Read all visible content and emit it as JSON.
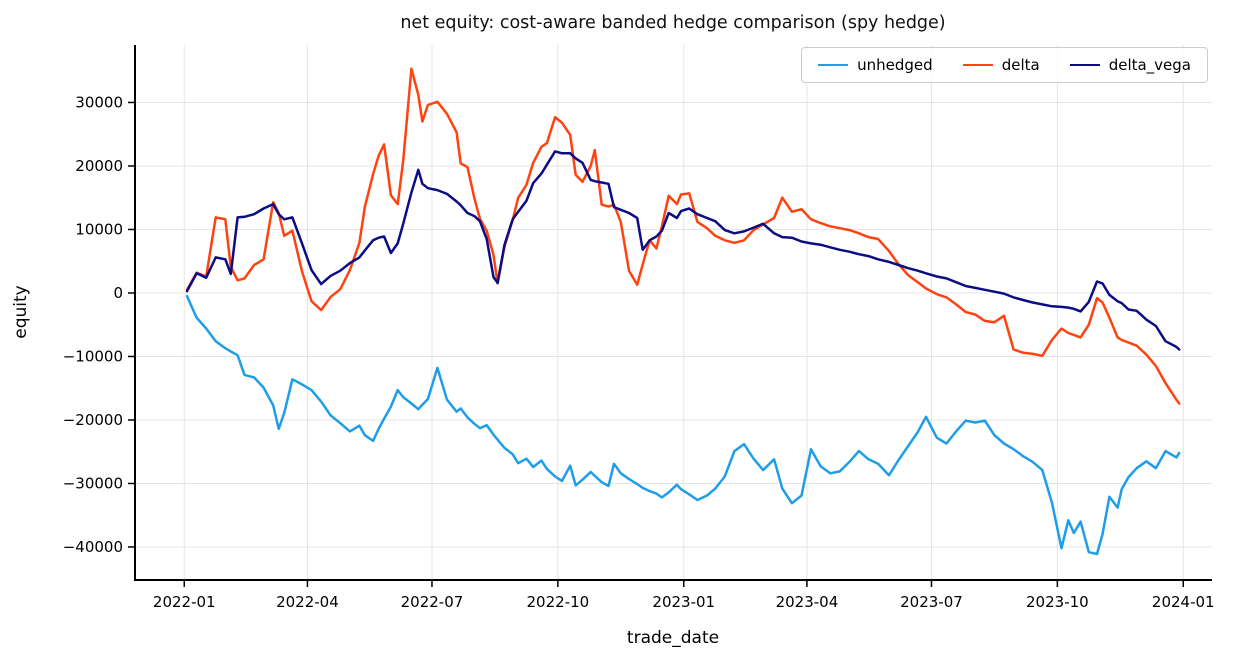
{
  "figure": {
    "title": "net equity: cost-aware banded hedge comparison (spy hedge)",
    "xlabel": "trade_date",
    "ylabel": "equity"
  },
  "legend": {
    "items": [
      {
        "label": "unhedged",
        "color": "#1f9de8"
      },
      {
        "label": "delta",
        "color": "#ff4310"
      },
      {
        "label": "delta_vega",
        "color": "#0c0c84"
      }
    ]
  },
  "chart_data": {
    "type": "line",
    "title": "net equity: cost-aware banded hedge comparison (spy hedge)",
    "xlabel": "trade_date",
    "ylabel": "equity",
    "grid": true,
    "legend_position": "upper right",
    "background": "#ffffff",
    "grid_color": "#e5e5e5",
    "ylim": [
      -45200,
      39050
    ],
    "xlim": [
      "2021-11-26",
      "2024-01-22"
    ],
    "y_ticks": [
      {
        "v": 30000,
        "label": "30000"
      },
      {
        "v": 20000,
        "label": "20000"
      },
      {
        "v": 10000,
        "label": "10000"
      },
      {
        "v": 0,
        "label": "0"
      },
      {
        "v": -10000,
        "label": "−10000"
      },
      {
        "v": -20000,
        "label": "−20000"
      },
      {
        "v": -30000,
        "label": "−30000"
      },
      {
        "v": -40000,
        "label": "−40000"
      }
    ],
    "x_ticks": [
      {
        "date": "2022-01-01",
        "label": "2022-01"
      },
      {
        "date": "2022-04-01",
        "label": "2022-04"
      },
      {
        "date": "2022-07-01",
        "label": "2022-07"
      },
      {
        "date": "2022-10-01",
        "label": "2022-10"
      },
      {
        "date": "2023-01-01",
        "label": "2023-01"
      },
      {
        "date": "2023-04-01",
        "label": "2023-04"
      },
      {
        "date": "2023-07-01",
        "label": "2023-07"
      },
      {
        "date": "2023-10-01",
        "label": "2023-10"
      },
      {
        "date": "2024-01-01",
        "label": "2024-01"
      }
    ],
    "x": [
      "2022-01-03",
      "2022-01-10",
      "2022-01-17",
      "2022-01-24",
      "2022-01-31",
      "2022-02-04",
      "2022-02-09",
      "2022-02-14",
      "2022-02-21",
      "2022-02-28",
      "2022-03-07",
      "2022-03-11",
      "2022-03-15",
      "2022-03-21",
      "2022-03-28",
      "2022-04-04",
      "2022-04-11",
      "2022-04-18",
      "2022-04-25",
      "2022-05-02",
      "2022-05-09",
      "2022-05-13",
      "2022-05-19",
      "2022-05-23",
      "2022-05-27",
      "2022-06-01",
      "2022-06-06",
      "2022-06-10",
      "2022-06-16",
      "2022-06-21",
      "2022-06-24",
      "2022-06-28",
      "2022-07-05",
      "2022-07-12",
      "2022-07-19",
      "2022-07-22",
      "2022-07-27",
      "2022-08-01",
      "2022-08-05",
      "2022-08-10",
      "2022-08-15",
      "2022-08-18",
      "2022-08-23",
      "2022-08-29",
      "2022-09-02",
      "2022-09-08",
      "2022-09-13",
      "2022-09-19",
      "2022-09-23",
      "2022-09-29",
      "2022-10-04",
      "2022-10-10",
      "2022-10-14",
      "2022-10-19",
      "2022-10-25",
      "2022-10-28",
      "2022-11-02",
      "2022-11-07",
      "2022-11-11",
      "2022-11-16",
      "2022-11-22",
      "2022-11-28",
      "2022-12-02",
      "2022-12-07",
      "2022-12-12",
      "2022-12-16",
      "2022-12-21",
      "2022-12-27",
      "2022-12-30",
      "2023-01-05",
      "2023-01-11",
      "2023-01-18",
      "2023-01-24",
      "2023-01-31",
      "2023-02-07",
      "2023-02-14",
      "2023-02-21",
      "2023-02-28",
      "2023-03-08",
      "2023-03-14",
      "2023-03-21",
      "2023-03-28",
      "2023-04-04",
      "2023-04-11",
      "2023-04-18",
      "2023-04-25",
      "2023-05-02",
      "2023-05-09",
      "2023-05-16",
      "2023-05-23",
      "2023-05-31",
      "2023-06-07",
      "2023-06-14",
      "2023-06-21",
      "2023-06-27",
      "2023-07-05",
      "2023-07-12",
      "2023-07-19",
      "2023-07-26",
      "2023-08-02",
      "2023-08-09",
      "2023-08-16",
      "2023-08-23",
      "2023-08-30",
      "2023-09-06",
      "2023-09-13",
      "2023-09-20",
      "2023-09-27",
      "2023-10-04",
      "2023-10-09",
      "2023-10-13",
      "2023-10-18",
      "2023-10-24",
      "2023-10-30",
      "2023-11-03",
      "2023-11-08",
      "2023-11-14",
      "2023-11-17",
      "2023-11-22",
      "2023-11-28",
      "2023-12-05",
      "2023-12-12",
      "2023-12-19",
      "2023-12-27",
      "2023-12-29"
    ],
    "series": [
      {
        "name": "unhedged",
        "color": "#1f9de8",
        "values": [
          -500,
          -3900,
          -5600,
          -7600,
          -8700,
          -9200,
          -9800,
          -12900,
          -13300,
          -14900,
          -17700,
          -21400,
          -18900,
          -13600,
          -14400,
          -15300,
          -17100,
          -19300,
          -20500,
          -21800,
          -20900,
          -22400,
          -23300,
          -21400,
          -19800,
          -17900,
          -15300,
          -16400,
          -17400,
          -18300,
          -17600,
          -16700,
          -11800,
          -16800,
          -18700,
          -18200,
          -19600,
          -20600,
          -21300,
          -20800,
          -22300,
          -23100,
          -24400,
          -25400,
          -26800,
          -26100,
          -27400,
          -26400,
          -27700,
          -28900,
          -29600,
          -27200,
          -30300,
          -29400,
          -28200,
          -28800,
          -29800,
          -30400,
          -26900,
          -28400,
          -29300,
          -30100,
          -30700,
          -31200,
          -31600,
          -32200,
          -31400,
          -30200,
          -30900,
          -31700,
          -32600,
          -31900,
          -30800,
          -28900,
          -24900,
          -23800,
          -26100,
          -27900,
          -26200,
          -30800,
          -33100,
          -31900,
          -24600,
          -27300,
          -28400,
          -28100,
          -26600,
          -24900,
          -26200,
          -26900,
          -28700,
          -26300,
          -24100,
          -21900,
          -19500,
          -22800,
          -23700,
          -21800,
          -20100,
          -20400,
          -20100,
          -22400,
          -23700,
          -24600,
          -25700,
          -26600,
          -27900,
          -33000,
          -40200,
          -35800,
          -37800,
          -36000,
          -40800,
          -41100,
          -38000,
          -32100,
          -33800,
          -30900,
          -29000,
          -27600,
          -26500,
          -27600,
          -24900,
          -25900,
          -25200
        ]
      },
      {
        "name": "delta",
        "color": "#ff4310",
        "values": [
          500,
          3200,
          2600,
          11900,
          11600,
          4100,
          2000,
          2300,
          4400,
          5300,
          14300,
          12600,
          9000,
          9800,
          3400,
          -1300,
          -2700,
          -600,
          600,
          3600,
          7900,
          13600,
          18700,
          21600,
          23400,
          15400,
          14000,
          20800,
          35300,
          31200,
          27000,
          29600,
          30100,
          28200,
          25300,
          20400,
          19800,
          14900,
          11700,
          9800,
          6000,
          1500,
          7300,
          11500,
          15000,
          17000,
          20500,
          23000,
          23600,
          27700,
          26800,
          24900,
          18600,
          17500,
          20000,
          22500,
          13900,
          13600,
          13900,
          11200,
          3500,
          1300,
          4500,
          8300,
          7000,
          10500,
          15300,
          14000,
          15500,
          15700,
          11200,
          10200,
          9000,
          8300,
          7900,
          8300,
          9900,
          10800,
          11800,
          15000,
          12800,
          13200,
          11600,
          11000,
          10500,
          10200,
          9900,
          9400,
          8800,
          8500,
          6600,
          4500,
          2800,
          1700,
          700,
          -200,
          -700,
          -1800,
          -3000,
          -3400,
          -4400,
          -4600,
          -3600,
          -8900,
          -9400,
          -9600,
          -9900,
          -7400,
          -5600,
          -6300,
          -6600,
          -7000,
          -5000,
          -800,
          -1500,
          -3900,
          -7000,
          -7400,
          -7800,
          -8300,
          -9700,
          -11500,
          -14200,
          -16800,
          -17400
        ]
      },
      {
        "name": "delta_vega",
        "color": "#0c0c84",
        "values": [
          300,
          3100,
          2400,
          5600,
          5300,
          3000,
          11900,
          12000,
          12400,
          13300,
          14000,
          12400,
          11600,
          11900,
          7800,
          3600,
          1400,
          2700,
          3500,
          4700,
          5600,
          6700,
          8300,
          8700,
          8900,
          6300,
          7800,
          10900,
          15800,
          19400,
          17200,
          16500,
          16200,
          15600,
          14400,
          13800,
          12600,
          12100,
          11300,
          8500,
          2500,
          1600,
          7600,
          11600,
          12800,
          14500,
          17300,
          18800,
          20200,
          22300,
          22000,
          22000,
          21200,
          20500,
          17800,
          17600,
          17400,
          17200,
          13500,
          13100,
          12600,
          11800,
          6800,
          8300,
          8900,
          9800,
          12600,
          11800,
          12900,
          13300,
          12400,
          11800,
          11300,
          9900,
          9400,
          9700,
          10300,
          10900,
          9400,
          8800,
          8700,
          8100,
          7800,
          7600,
          7200,
          6800,
          6500,
          6100,
          5800,
          5300,
          4900,
          4400,
          3900,
          3500,
          3100,
          2600,
          2300,
          1700,
          1100,
          800,
          500,
          200,
          -100,
          -700,
          -1100,
          -1500,
          -1800,
          -2100,
          -2200,
          -2300,
          -2500,
          -2900,
          -1400,
          1800,
          1500,
          -300,
          -1300,
          -1600,
          -2600,
          -2800,
          -4200,
          -5200,
          -7600,
          -8500,
          -8900
        ]
      }
    ]
  }
}
